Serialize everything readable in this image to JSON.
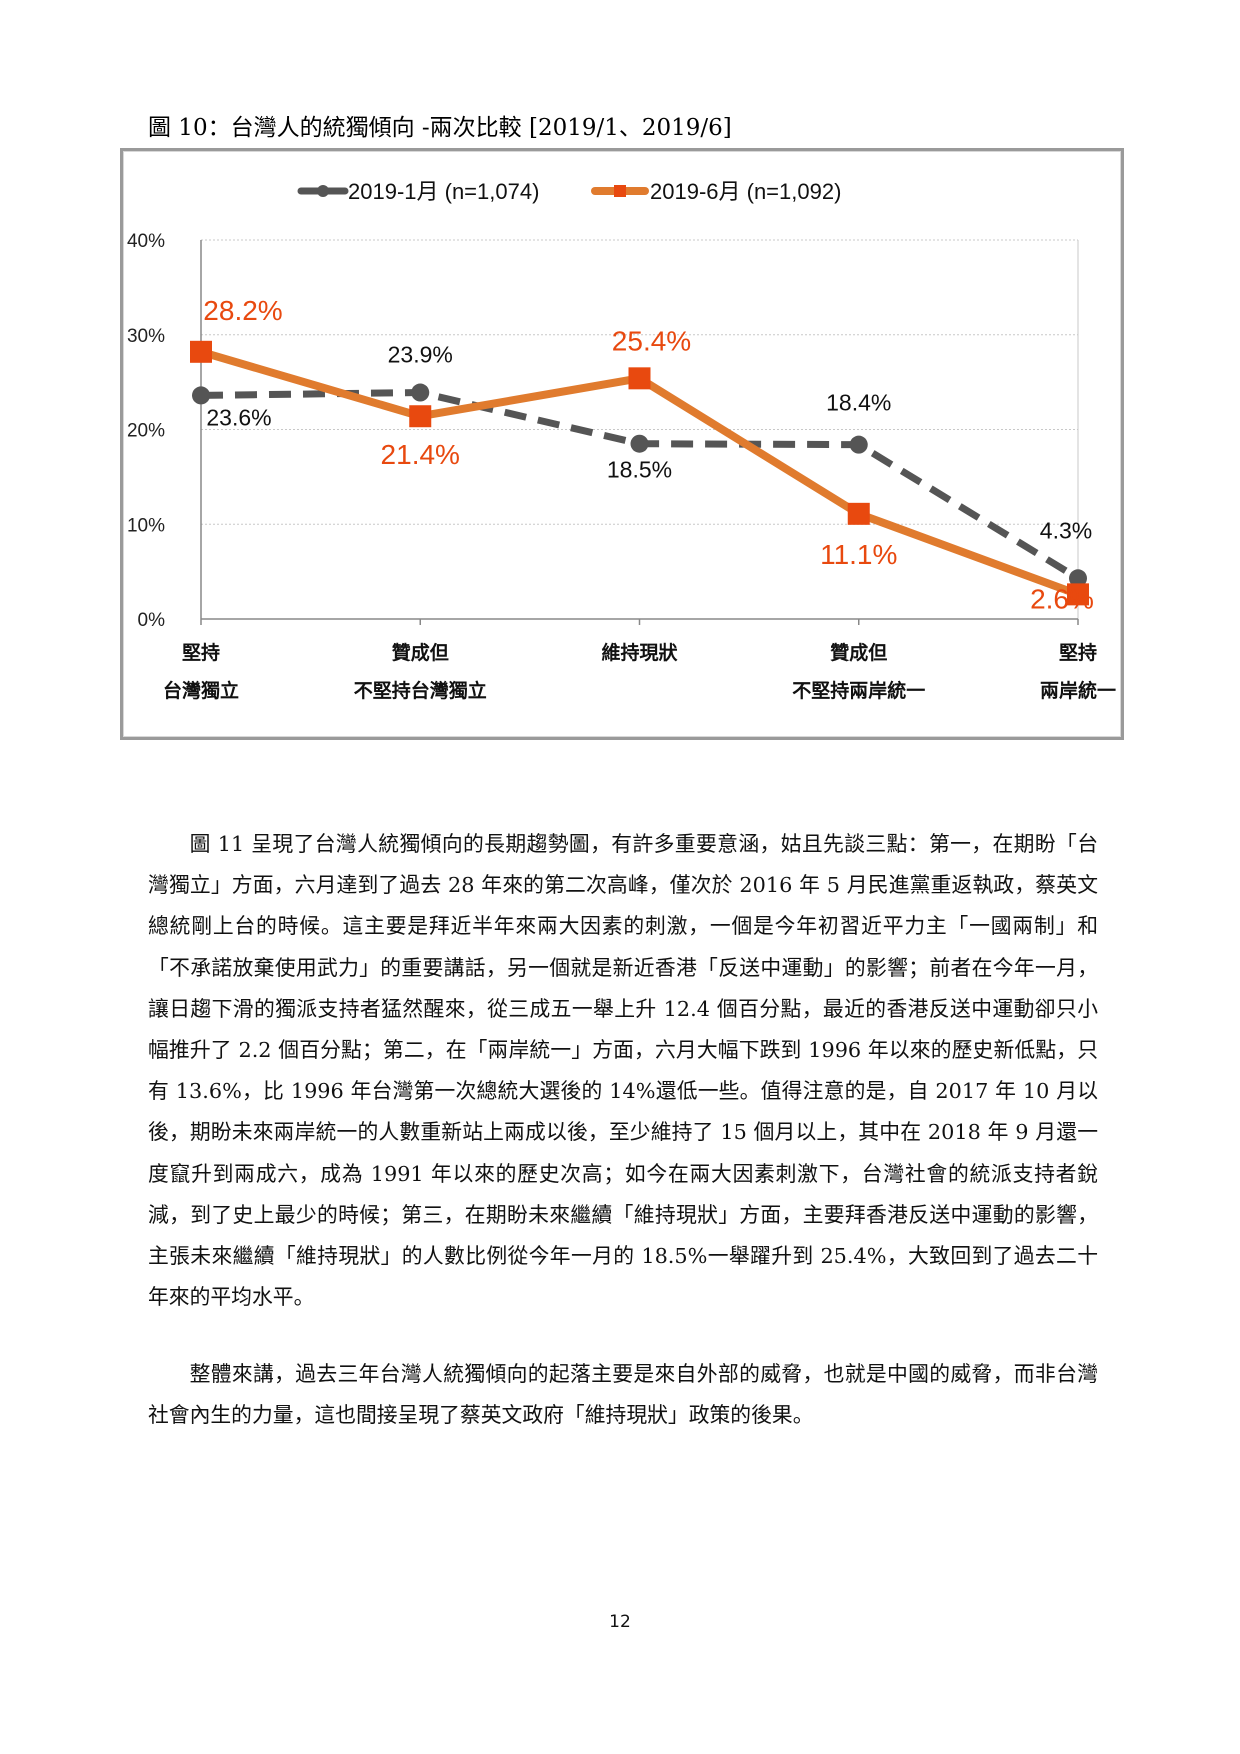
{
  "figure": {
    "caption": "圖 10：台灣人的統獨傾向 -兩次比較 [2019/1、2019/6]"
  },
  "colors": {
    "series_1": "#555555",
    "series_2": "#e07b2e",
    "series_2_marker": "#e8490f",
    "series_2_label": "#e8490f",
    "grid": "#c8c8c8"
  },
  "chart_data": {
    "type": "line",
    "title": "",
    "categories": [
      [
        "堅持",
        "台灣獨立"
      ],
      [
        "贊成但",
        "不堅持台灣獨立"
      ],
      [
        "維持現狀",
        ""
      ],
      [
        "贊成但",
        "不堅持兩岸統一"
      ],
      [
        "堅持",
        "兩岸統一"
      ]
    ],
    "ylim": [
      0,
      40
    ],
    "yticks": [
      "0%",
      "10%",
      "20%",
      "30%",
      "40%"
    ],
    "grid": true,
    "legend": "top",
    "series": [
      {
        "name": "2019-1月 (n=1,074)",
        "style": "dashed",
        "marker": "circle",
        "values": [
          23.6,
          23.9,
          18.5,
          18.4,
          4.3
        ],
        "labels": [
          "23.6%",
          "23.9%",
          "18.5%",
          "18.4%",
          "4.3%"
        ]
      },
      {
        "name": "2019-6月 (n=1,092)",
        "style": "solid",
        "marker": "square",
        "values": [
          28.2,
          21.4,
          25.4,
          11.1,
          2.6
        ],
        "labels": [
          "28.2%",
          "21.4%",
          "25.4%",
          "11.1%",
          "2.6%"
        ]
      }
    ]
  },
  "paragraphs": [
    "圖 11 呈現了台灣人統獨傾向的長期趨勢圖，有許多重要意涵，姑且先談三點：第一，在期盼「台灣獨立」方面，六月達到了過去 28 年來的第二次高峰，僅次於 2016 年 5 月民進黨重返執政，蔡英文總統剛上台的時候。這主要是拜近半年來兩大因素的刺激，一個是今年初習近平力主「一國兩制」和「不承諾放棄使用武力」的重要講話，另一個就是新近香港「反送中運動」的影響；前者在今年一月，讓日趨下滑的獨派支持者猛然醒來，從三成五一舉上升 12.4 個百分點，最近的香港反送中運動卻只小幅推升了 2.2 個百分點；第二，在「兩岸統一」方面，六月大幅下跌到 1996 年以來的歷史新低點，只有 13.6%，比 1996 年台灣第一次總統大選後的 14%還低一些。值得注意的是，自 2017 年 10 月以後，期盼未來兩岸統一的人數重新站上兩成以後，至少維持了 15 個月以上，其中在 2018 年 9 月還一度竄升到兩成六，成為 1991 年以來的歷史次高；如今在兩大因素刺激下，台灣社會的統派支持者銳減，到了史上最少的時候；第三，在期盼未來繼續「維持現狀」方面，主要拜香港反送中運動的影響，主張未來繼續「維持現狀」的人數比例從今年一月的 18.5%一舉躍升到 25.4%，大致回到了過去二十年來的平均水平。",
    "整體來講，過去三年台灣人統獨傾向的起落主要是來自外部的威脅，也就是中國的威脅，而非台灣社會內生的力量，這也間接呈現了蔡英文政府「維持現狀」政策的後果。"
  ],
  "page_number": "12"
}
